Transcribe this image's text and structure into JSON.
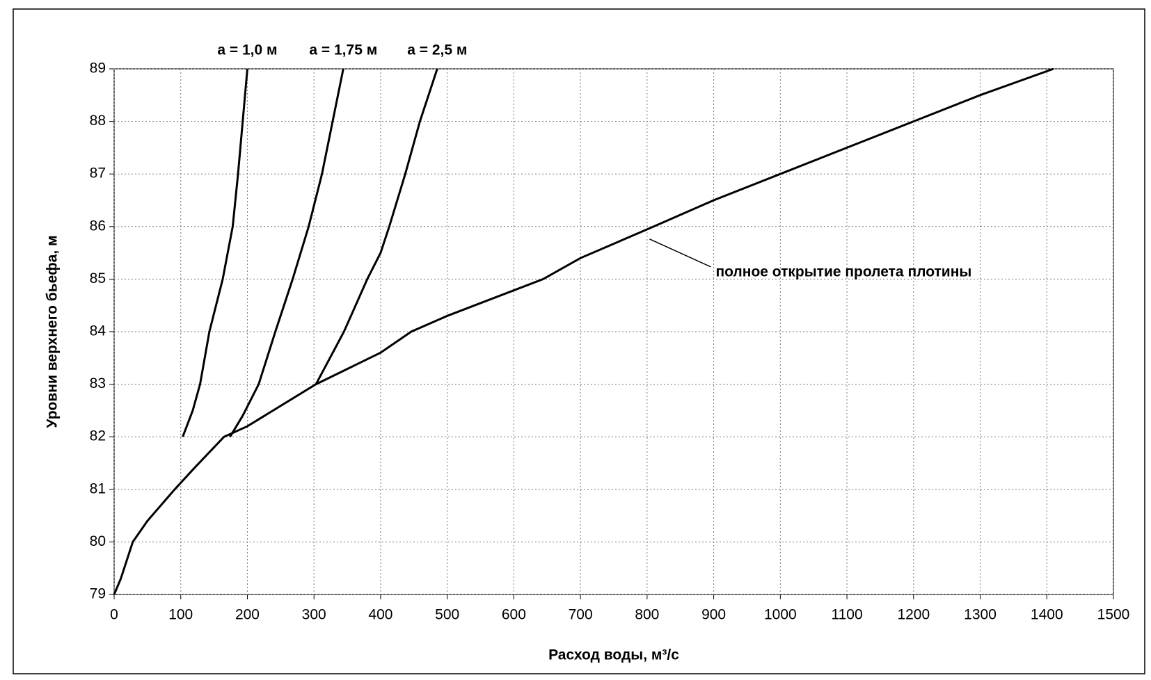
{
  "chart_data": {
    "type": "line",
    "xlabel": "Расход воды, м³/с",
    "ylabel": "Уровни верхнего бьефа, м",
    "xlim": [
      0,
      1500
    ],
    "xticks": [
      0,
      100,
      200,
      300,
      400,
      500,
      600,
      700,
      800,
      900,
      1000,
      1100,
      1200,
      1300,
      1400,
      1500
    ],
    "ylim": [
      79,
      89
    ],
    "yticks": [
      79,
      80,
      81,
      82,
      83,
      84,
      85,
      86,
      87,
      88,
      89
    ],
    "grid": true,
    "series": [
      {
        "name": "a = 1,0 м",
        "color": "#000000",
        "x": [
          103,
          118,
          129,
          143,
          163,
          178,
          186,
          193,
          200
        ],
        "values": [
          82,
          82.5,
          83,
          84,
          85,
          86,
          87,
          88,
          89
        ]
      },
      {
        "name": "a = 1,75 м",
        "color": "#000000",
        "x": [
          174,
          193,
          217,
          242,
          268,
          292,
          312,
          328,
          344
        ],
        "values": [
          82,
          82.4,
          83,
          84,
          85,
          86,
          87,
          88,
          89
        ]
      },
      {
        "name": "a = 2,5 м",
        "color": "#000000",
        "x": [
          303,
          345,
          380,
          400,
          413,
          437,
          459,
          485
        ],
        "values": [
          83,
          84,
          85,
          85.5,
          86,
          87,
          88,
          89
        ]
      },
      {
        "name": "полное открытие пролета плотины",
        "color": "#000000",
        "x": [
          0,
          10,
          28,
          50,
          91,
          120,
          165,
          200,
          303,
          400,
          446,
          500,
          644,
          700,
          810,
          900,
          1000,
          1100,
          1200,
          1300,
          1410
        ],
        "values": [
          79,
          79.3,
          80,
          80.4,
          81,
          81.4,
          82,
          82.2,
          83,
          83.6,
          84,
          84.3,
          85,
          85.4,
          86,
          86.5,
          87,
          87.5,
          88,
          88.5,
          89
        ]
      }
    ]
  }
}
